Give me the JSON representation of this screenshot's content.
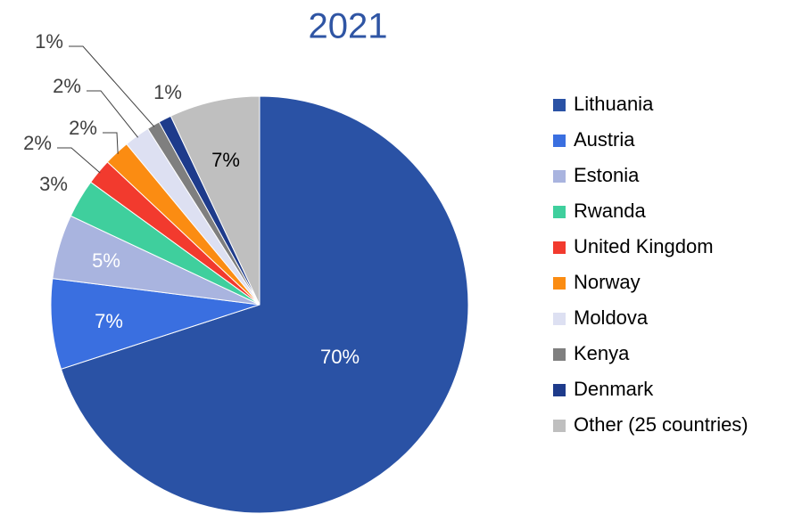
{
  "chart_data": {
    "type": "pie",
    "title": "2021",
    "categories": [
      "Lithuania",
      "Austria",
      "Estonia",
      "Rwanda",
      "United Kingdom",
      "Norway",
      "Moldova",
      "Kenya",
      "Denmark",
      "Other (25 countries)"
    ],
    "values": [
      70,
      7,
      5,
      3,
      2,
      2,
      2,
      1,
      1,
      7
    ],
    "value_labels": [
      "70%",
      "7%",
      "5%",
      "3%",
      "2%",
      "2%",
      "2%",
      "1%",
      "1%",
      "7%"
    ],
    "colors": [
      "#2a52a5",
      "#3a6fe0",
      "#a9b4df",
      "#3fcf9d",
      "#f23a2e",
      "#fb8c12",
      "#dde0f2",
      "#7f7f7f",
      "#1e3b8b",
      "#bfbfbf"
    ],
    "legend": "right"
  }
}
